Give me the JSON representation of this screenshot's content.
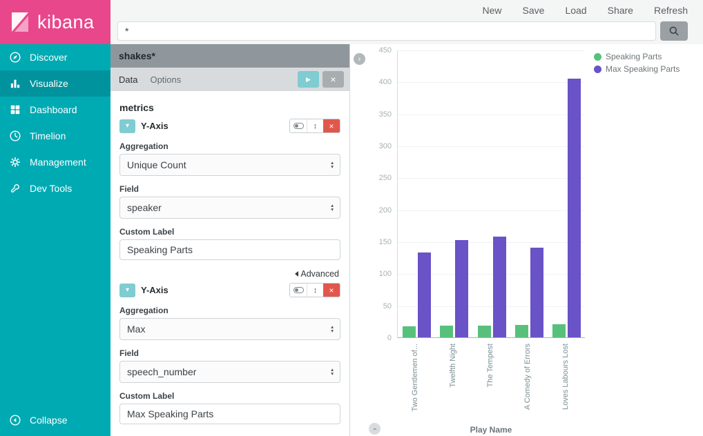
{
  "theme": {
    "pink": "#e8478b",
    "teal": "#00aab3",
    "teal_active": "#00939e",
    "light_teal": "#7fccd2",
    "red": "#e2574c"
  },
  "brand": {
    "name": "kibana"
  },
  "topnav": {
    "items": [
      "New",
      "Save",
      "Load",
      "Share",
      "Refresh"
    ]
  },
  "search": {
    "value": "*"
  },
  "sidebar": {
    "items": [
      {
        "label": "Discover"
      },
      {
        "label": "Visualize"
      },
      {
        "label": "Dashboard"
      },
      {
        "label": "Timelion"
      },
      {
        "label": "Management"
      },
      {
        "label": "Dev Tools"
      }
    ],
    "collapse_label": "Collapse"
  },
  "editor": {
    "index_pattern": "shakes*",
    "tabs": [
      {
        "label": "Data"
      },
      {
        "label": "Options"
      }
    ],
    "section_title": "metrics",
    "advanced_label": "Advanced",
    "metrics": [
      {
        "title": "Y-Axis",
        "aggregation_label": "Aggregation",
        "aggregation_value": "Unique Count",
        "field_label": "Field",
        "field_value": "speaker",
        "custom_label_label": "Custom Label",
        "custom_label_value": "Speaking Parts"
      },
      {
        "title": "Y-Axis",
        "aggregation_label": "Aggregation",
        "aggregation_value": "Max",
        "field_label": "Field",
        "field_value": "speech_number",
        "custom_label_label": "Custom Label",
        "custom_label_value": "Max Speaking Parts"
      }
    ]
  },
  "icons": {
    "play": "▶",
    "close": "×",
    "reorder": "↕",
    "chevron_right": "›",
    "select_up": "▴",
    "select_down": "▾",
    "section_chevron": "▾"
  },
  "chart_data": {
    "type": "bar",
    "title": "",
    "categories": [
      "Two Gentlemen of...",
      "Twelfth Night",
      "The Tempest",
      "A Comedy of Errors",
      "Loves Labours Lost"
    ],
    "series": [
      {
        "name": "Speaking Parts",
        "color": "#57c17b",
        "values": [
          17,
          18,
          18,
          19,
          20
        ]
      },
      {
        "name": "Max Speaking Parts",
        "color": "#6a52c7",
        "values": [
          133,
          152,
          158,
          140,
          405
        ]
      }
    ],
    "xlabel": "Play Name",
    "ylabel": "",
    "ylim": [
      0,
      450
    ],
    "ytick_step": 50,
    "legend_position": "right",
    "grid": true
  }
}
